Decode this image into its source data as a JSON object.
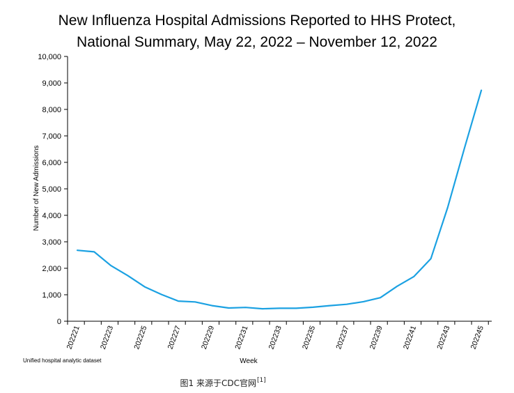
{
  "chart_data": {
    "type": "line",
    "title_lines": [
      "New Influenza Hospital Admissions Reported to HHS Protect,",
      "National Summary, May 22, 2022 – November 12, 2022"
    ],
    "xlabel": "Week",
    "ylabel": "Number of New Admissions",
    "ylim": [
      0,
      10000
    ],
    "yticks": [
      0,
      1000,
      2000,
      3000,
      4000,
      5000,
      6000,
      7000,
      8000,
      9000,
      10000
    ],
    "ytick_labels": [
      "0",
      "1,000",
      "2,000",
      "3,000",
      "4,000",
      "5,000",
      "6,000",
      "7,000",
      "8,000",
      "9,000",
      "10,000"
    ],
    "x": [
      "202221",
      "202222",
      "202223",
      "202224",
      "202225",
      "202226",
      "202227",
      "202228",
      "202229",
      "202230",
      "202231",
      "202232",
      "202233",
      "202234",
      "202235",
      "202236",
      "202237",
      "202238",
      "202239",
      "202240",
      "202241",
      "202242",
      "202243",
      "202244",
      "202245"
    ],
    "xtick_labels": [
      "202221",
      "202223",
      "202225",
      "202227",
      "202229",
      "202231",
      "202233",
      "202235",
      "202237",
      "202239",
      "202241",
      "202243",
      "202245"
    ],
    "series": [
      {
        "color": "#1ba1e2",
        "values": [
          2680,
          2620,
          2100,
          1720,
          1300,
          1010,
          760,
          730,
          590,
          500,
          520,
          470,
          490,
          490,
          530,
          590,
          640,
          740,
          890,
          1320,
          1690,
          2360,
          4290,
          6540,
          8720
        ]
      }
    ],
    "grid": false,
    "legend": "none"
  },
  "notes": {
    "source": "Unified hospital analytic dataset"
  },
  "caption": {
    "text": "图1 来源于CDC官网",
    "ref": "[1]"
  }
}
